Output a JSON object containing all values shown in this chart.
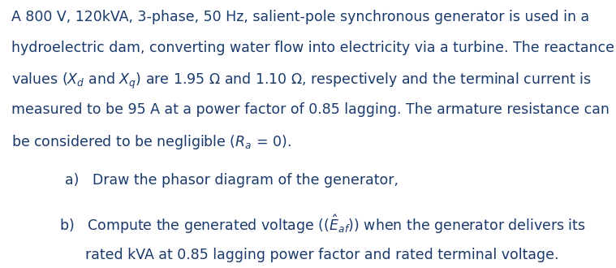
{
  "background_color": "#ffffff",
  "text_color": "#1a3a6b",
  "fig_width": 7.59,
  "fig_height": 3.3,
  "dpi": 100,
  "font_size": 12.5,
  "font_family": "Times New Roman",
  "line1": "A 800 V, 120kVA, 3-phase, 50 Hz, salient-pole synchronous generator is used in a",
  "line2": "hydroelectric dam, converting water flow into electricity via a turbine. The reactance",
  "line3a": "values (",
  "line3b": " and ",
  "line3c": ") are 1.95 ",
  "line3d": " and 1.10 ",
  "line3e": ", respectively and the terminal current is",
  "line4": "measured to be 95 A at a power factor of 0.85 lagging. The armature resistance can",
  "line5a": "be considered to be negligible (",
  "line5b": " = 0).",
  "item_a": "a)   Draw the phasor diagram of the generator,",
  "item_b": "b)   Compute the generated voltage (",
  "item_b2": ") when the generator delivers its",
  "item_b3": "rated kVA at 0.85 lagging power factor and rated terminal voltage."
}
